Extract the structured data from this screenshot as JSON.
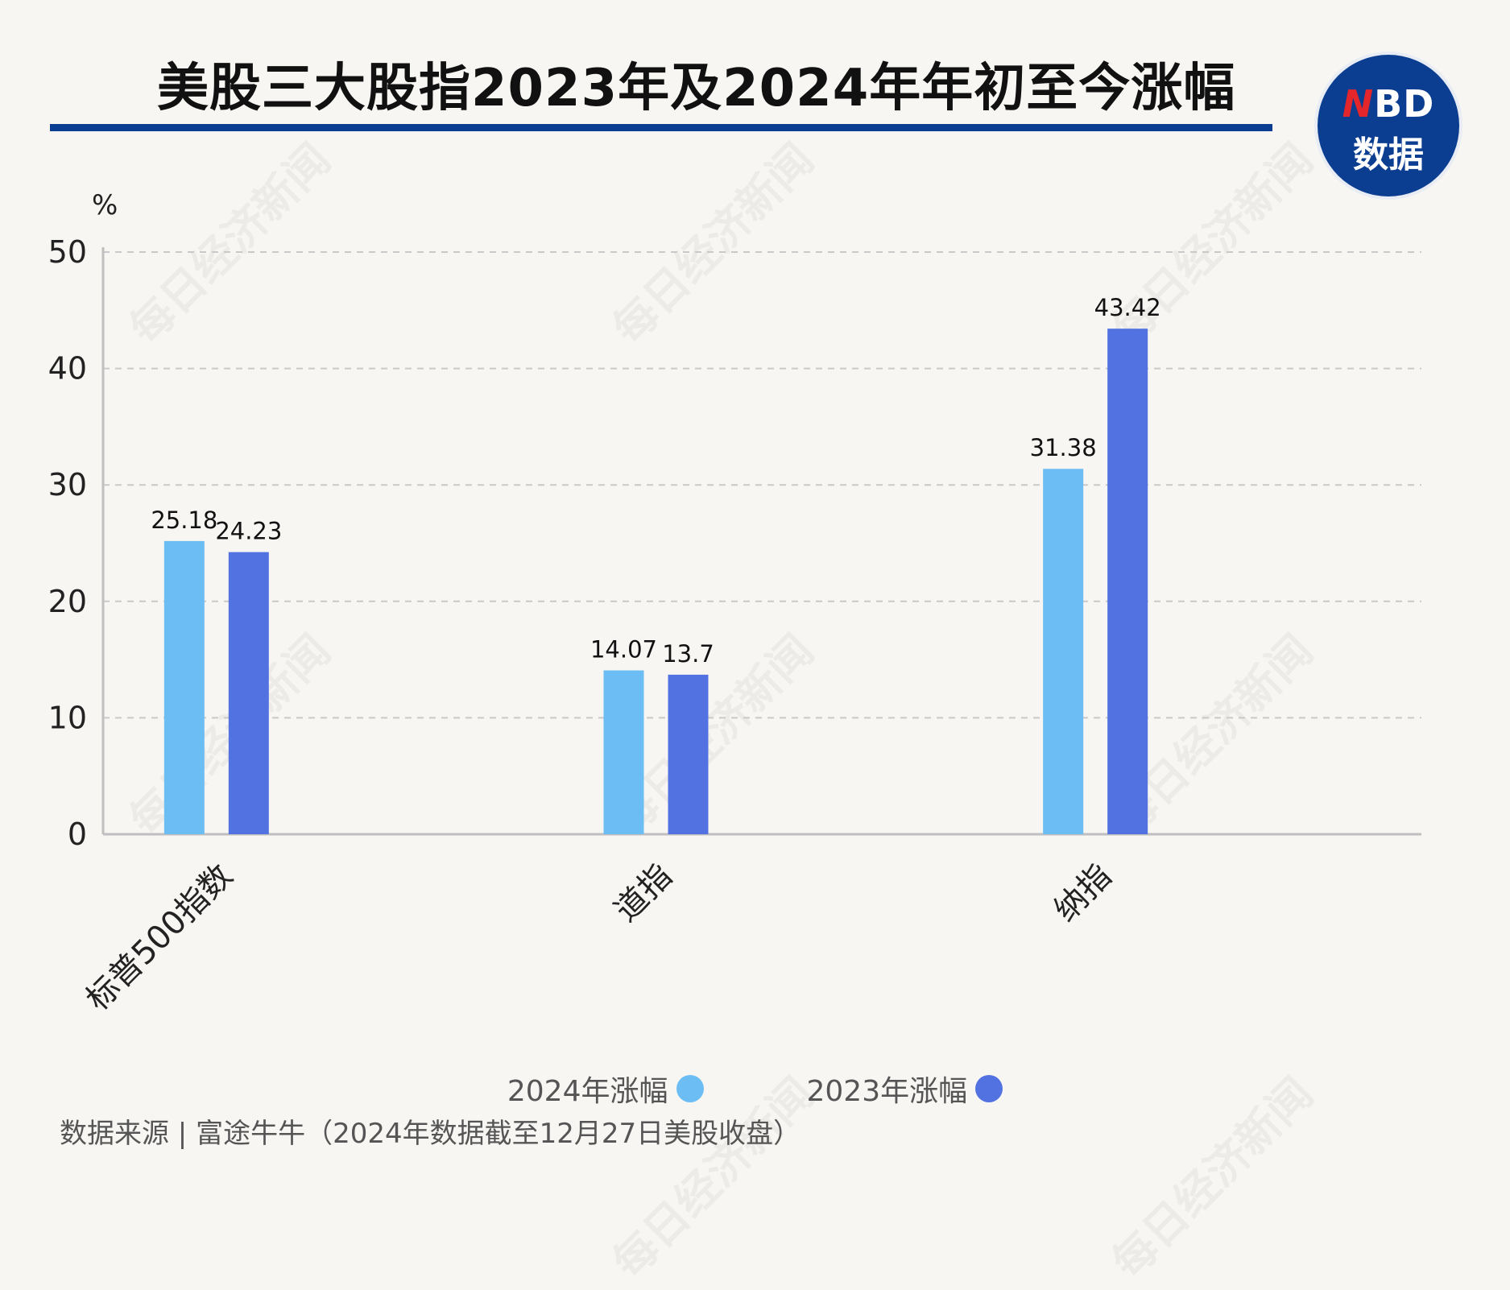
{
  "title": "美股三大股指2023年及2024年年初至今涨幅",
  "logo": {
    "line1_n": "N",
    "line1_rest": "BD",
    "line2": "数据"
  },
  "watermark": "每日经济新闻",
  "source": "数据来源 | 富途牛牛（2024年数据截至12月27日美股收盘）",
  "colors": {
    "series_2024": "#6cbdf4",
    "series_2023": "#5272e2",
    "title_rule": "#0b3d91"
  },
  "chart_data": {
    "type": "bar",
    "ylabel": "%",
    "ylim": [
      0,
      50
    ],
    "yticks": [
      0,
      10,
      20,
      30,
      40,
      50
    ],
    "grid": true,
    "legend_position": "bottom-center",
    "categories": [
      "标普500指数",
      "道指",
      "纳指"
    ],
    "series": [
      {
        "name": "2024年涨幅",
        "values": [
          25.18,
          14.07,
          31.38
        ],
        "labels": [
          "25.18",
          "14.07",
          "31.38"
        ]
      },
      {
        "name": "2023年涨幅",
        "values": [
          24.23,
          13.7,
          43.42
        ],
        "labels": [
          "24.23",
          "13.7",
          "43.42"
        ]
      }
    ]
  }
}
